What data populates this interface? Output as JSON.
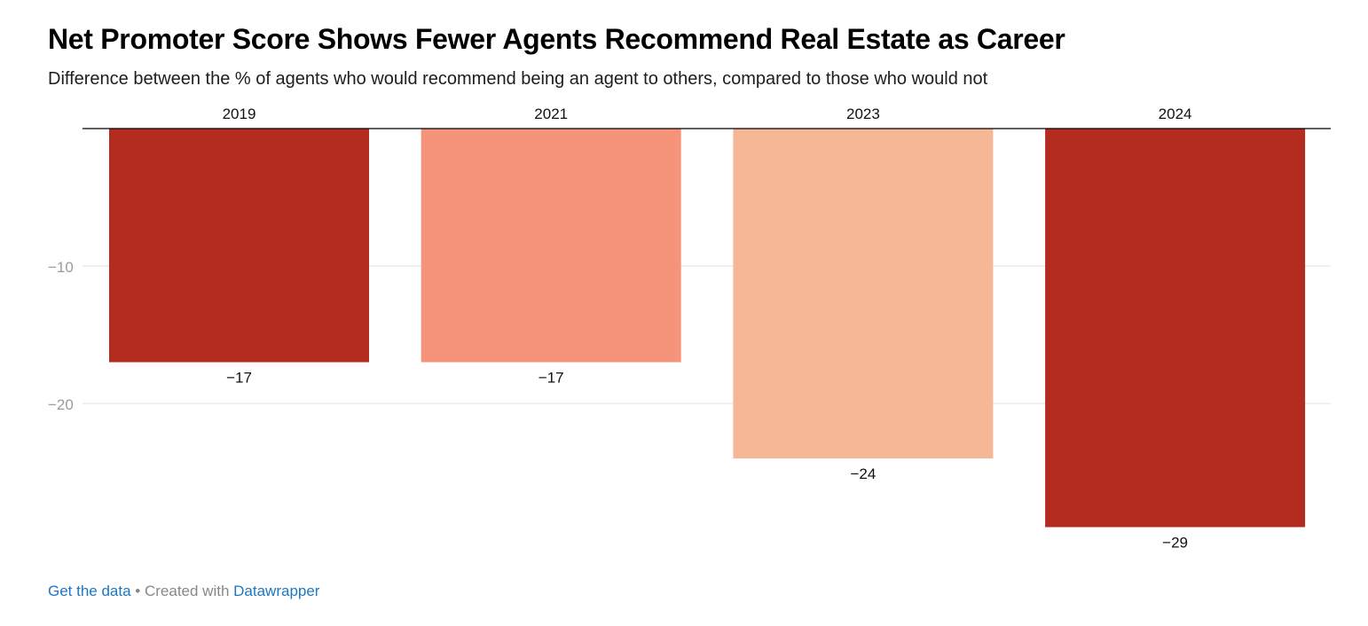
{
  "chart_data": {
    "type": "bar",
    "title": "Net Promoter Score Shows Fewer Agents Recommend Real Estate as Career",
    "subtitle": "Difference between the % of agents who would recommend being an agent to others, compared to those who would not",
    "categories": [
      "2019",
      "2021",
      "2023",
      "2024"
    ],
    "values": [
      -17,
      -17,
      -24,
      -29
    ],
    "value_labels": [
      "−17",
      "−17",
      "−24",
      "−29"
    ],
    "bar_colors": [
      "#b42b20",
      "#f5947a",
      "#f6b797",
      "#b42b20"
    ],
    "y_ticks": [
      -10,
      -20
    ],
    "y_tick_labels": [
      "−10",
      "−20"
    ],
    "ylim": [
      -30,
      0
    ],
    "xlabel": "",
    "ylabel": "",
    "grid": true,
    "category_label_position": "top"
  },
  "footer": {
    "get_data_label": "Get the data",
    "separator": " • Created with ",
    "datawrapper_label": "Datawrapper"
  },
  "colors": {
    "axis": "#000000",
    "grid": "#e0e0e0",
    "tick_label": "#9a9a9a",
    "link": "#1f76c2"
  }
}
